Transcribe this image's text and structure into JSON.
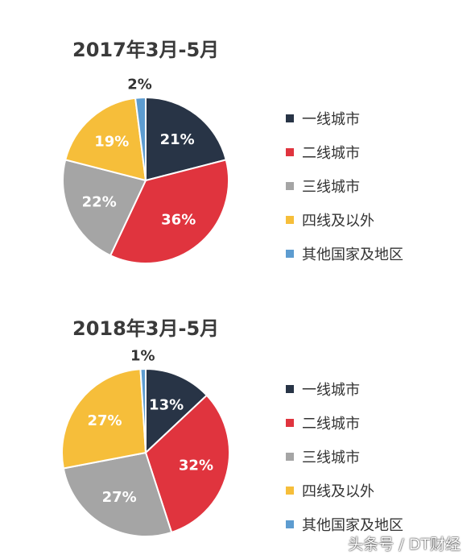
{
  "colors": {
    "tier1": "#283446",
    "tier2": "#e0343e",
    "tier3": "#a5a5a5",
    "tier4": "#f6be3a",
    "other": "#5d9cd0"
  },
  "chart_data": [
    {
      "type": "pie",
      "title": "2017年3月-5月",
      "categories": [
        "一线城市",
        "二线城市",
        "三线城市",
        "四线及以外",
        "其他国家及地区"
      ],
      "values": [
        21,
        36,
        22,
        19,
        2
      ],
      "labels": [
        "21%",
        "36%",
        "22%",
        "19%",
        "2%"
      ],
      "legend_position": "right"
    },
    {
      "type": "pie",
      "title": "2018年3月-5月",
      "categories": [
        "一线城市",
        "二线城市",
        "三线城市",
        "四线及以外",
        "其他国家及地区"
      ],
      "values": [
        13,
        32,
        27,
        27,
        1
      ],
      "labels": [
        "13%",
        "32%",
        "27%",
        "27%",
        "1%"
      ],
      "legend_position": "right"
    }
  ],
  "watermark": "头条号 / DT财经"
}
